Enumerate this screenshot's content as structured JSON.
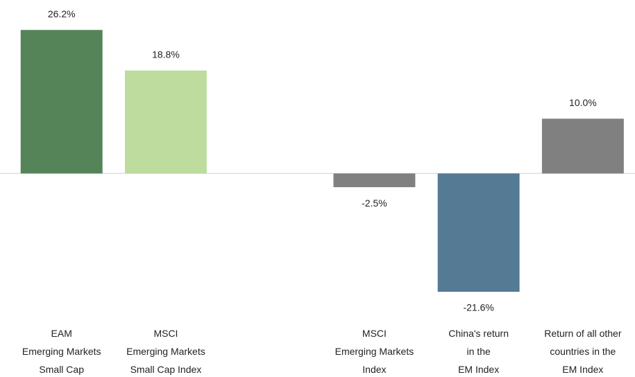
{
  "chart_data": {
    "type": "bar",
    "categories": [
      "EAM\nEmerging Markets\nSmall Cap",
      "MSCI\nEmerging Markets\nSmall Cap Index",
      null,
      "MSCI\nEmerging Markets\nIndex",
      "China's return\nin the\nEM Index",
      "Return of all other\ncountries in the\nEM Index"
    ],
    "values": [
      26.2,
      18.8,
      null,
      -2.5,
      -21.6,
      10.0
    ],
    "value_labels": [
      "26.2%",
      "18.8%",
      null,
      "-2.5%",
      "-21.6%",
      "10.0%"
    ],
    "colors": [
      "#548458",
      "#bddc9d",
      null,
      "#808080",
      "#547a94",
      "#808080"
    ],
    "ylim": [
      -24,
      28
    ]
  }
}
